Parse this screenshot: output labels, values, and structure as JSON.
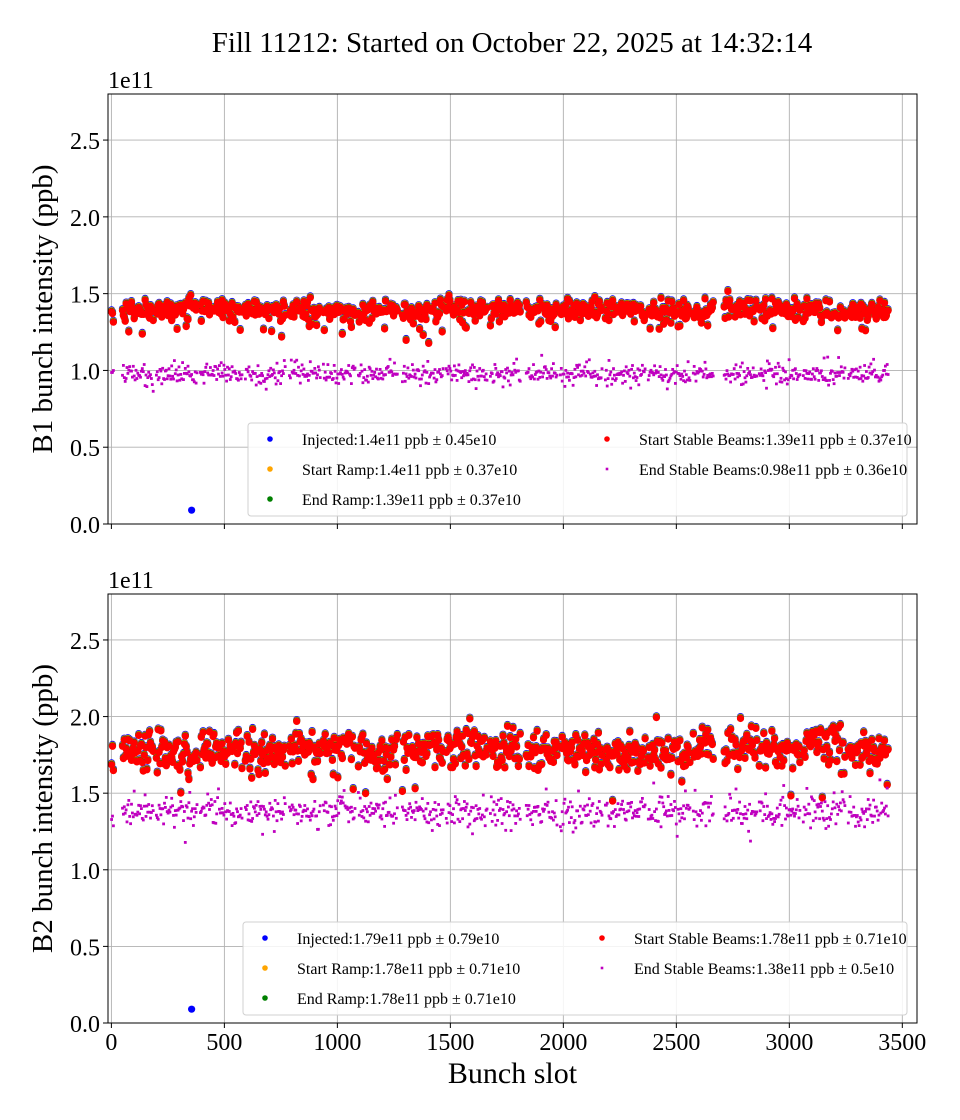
{
  "title": "Fill 11212: Started on October 22, 2025 at 14:32:14",
  "chart_data": [
    {
      "type": "scatter",
      "panel": "top",
      "ylabel": "B1 bunch intensity (ppb)",
      "xlabel": "",
      "y_offset_label": "1e11",
      "xlim": [
        -15,
        3565
      ],
      "ylim": [
        0,
        2.8
      ],
      "xticks": [
        0,
        500,
        1000,
        1500,
        2000,
        2500,
        3000,
        3500
      ],
      "xtick_labels_shown": false,
      "yticks": [
        0.0,
        0.5,
        1.0,
        1.5,
        2.0,
        2.5
      ],
      "ytick_labels": [
        "0.0",
        "0.5",
        "1.0",
        "1.5",
        "2.0",
        "2.5"
      ],
      "grid": true,
      "legend_placement": "lower-right",
      "filled_slot_ranges": [
        [
          1,
          12
        ],
        [
          49,
          186
        ],
        [
          199,
          381
        ],
        [
          394,
          580
        ],
        [
          593,
          770
        ],
        [
          788,
          925
        ],
        [
          938,
          1080
        ],
        [
          1093,
          1265
        ],
        [
          1288,
          1469
        ],
        [
          1482,
          1664
        ],
        [
          1677,
          1810
        ],
        [
          1836,
          1973
        ],
        [
          1987,
          2173
        ],
        [
          2186,
          2363
        ],
        [
          2376,
          2562
        ],
        [
          2575,
          2664
        ],
        [
          2712,
          2858
        ],
        [
          2867,
          3049
        ],
        [
          3062,
          3248
        ],
        [
          3261,
          3438
        ]
      ],
      "series": [
        {
          "name": "Injected:1.4e11 ppb ± 0.45e10",
          "mean": 1.4,
          "std": 0.045,
          "color": "#0000ff",
          "outliers": [
            [
              355,
              0.09
            ]
          ]
        },
        {
          "name": "Start Ramp:1.4e11 ppb ± 0.37e10",
          "mean": 1.4,
          "std": 0.037,
          "color": "#ffa500"
        },
        {
          "name": "End Ramp:1.39e11 ppb ± 0.37e10",
          "mean": 1.39,
          "std": 0.037,
          "color": "#008000"
        },
        {
          "name": "Start Stable Beams:1.39e11 ppb ± 0.37e10",
          "mean": 1.39,
          "std": 0.037,
          "color": "#ff0000"
        },
        {
          "name": "End Stable Beams:0.98e11 ppb ± 0.36e10",
          "mean": 0.98,
          "std": 0.036,
          "color": "#bf00bf"
        }
      ]
    },
    {
      "type": "scatter",
      "panel": "bottom",
      "ylabel": "B2 bunch intensity (ppb)",
      "xlabel": "Bunch slot",
      "y_offset_label": "1e11",
      "xlim": [
        -15,
        3565
      ],
      "ylim": [
        0,
        2.8
      ],
      "xticks": [
        0,
        500,
        1000,
        1500,
        2000,
        2500,
        3000,
        3500
      ],
      "xtick_labels": [
        "0",
        "500",
        "1000",
        "1500",
        "2000",
        "2500",
        "3000",
        "3500"
      ],
      "yticks": [
        0.0,
        0.5,
        1.0,
        1.5,
        2.0,
        2.5
      ],
      "ytick_labels": [
        "0.0",
        "0.5",
        "1.0",
        "1.5",
        "2.0",
        "2.5"
      ],
      "grid": true,
      "legend_placement": "lower-right",
      "filled_slot_ranges": [
        [
          1,
          12
        ],
        [
          49,
          186
        ],
        [
          199,
          381
        ],
        [
          394,
          580
        ],
        [
          593,
          770
        ],
        [
          788,
          925
        ],
        [
          938,
          1080
        ],
        [
          1093,
          1265
        ],
        [
          1288,
          1469
        ],
        [
          1482,
          1664
        ],
        [
          1677,
          1810
        ],
        [
          1836,
          1973
        ],
        [
          1987,
          2173
        ],
        [
          2186,
          2363
        ],
        [
          2376,
          2562
        ],
        [
          2575,
          2664
        ],
        [
          2712,
          2858
        ],
        [
          2867,
          3049
        ],
        [
          3062,
          3248
        ],
        [
          3261,
          3438
        ]
      ],
      "series": [
        {
          "name": "Injected:1.79e11 ppb ± 0.79e10",
          "mean": 1.79,
          "std": 0.079,
          "color": "#0000ff",
          "outliers": [
            [
              355,
              0.09
            ]
          ]
        },
        {
          "name": "Start Ramp:1.78e11 ppb ± 0.71e10",
          "mean": 1.78,
          "std": 0.071,
          "color": "#ffa500"
        },
        {
          "name": "End Ramp:1.78e11 ppb ± 0.71e10",
          "mean": 1.78,
          "std": 0.071,
          "color": "#008000"
        },
        {
          "name": "Start Stable Beams:1.78e11 ppb ± 0.71e10",
          "mean": 1.78,
          "std": 0.071,
          "color": "#ff0000"
        },
        {
          "name": "End Stable Beams:1.38e11 ppb ± 0.5e10",
          "mean": 1.38,
          "std": 0.05,
          "color": "#bf00bf"
        }
      ]
    }
  ]
}
